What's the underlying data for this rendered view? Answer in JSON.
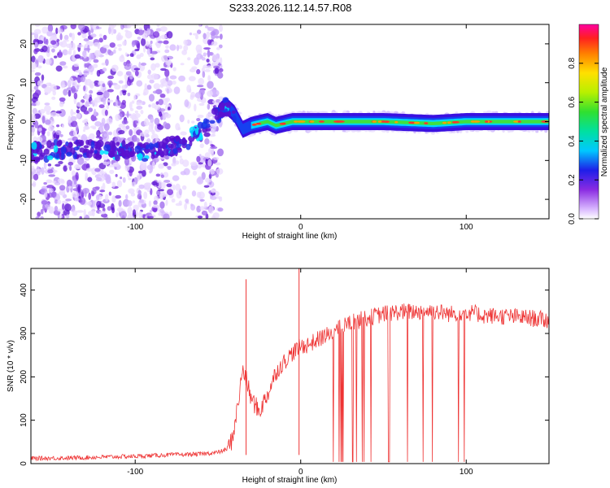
{
  "title": "S233.2026.112.14.57.R08",
  "colors": {
    "snr_line": "#ee3333",
    "axis": "#000000"
  },
  "chart_data": [
    {
      "type": "heatmap",
      "xlabel": "Height of straight line (km)",
      "ylabel": "Frequency (Hz)",
      "xlim": [
        -163,
        150
      ],
      "ylim": [
        -25,
        25
      ],
      "x_ticks": [
        -100,
        0,
        100
      ],
      "y_ticks": [
        -20,
        -10,
        0,
        10,
        20
      ],
      "colorbar": {
        "label": "Normalized spectral amplitude",
        "range": [
          0,
          1
        ],
        "ticks": [
          0.0,
          0.2,
          0.4,
          0.6,
          0.8
        ],
        "colormap": "rainbow"
      },
      "ridge": {
        "x": [
          -163,
          -150,
          -130,
          -110,
          -95,
          -85,
          -75,
          -65,
          -55,
          -48,
          -45,
          -40,
          -35,
          -30,
          -25,
          -20,
          -15,
          -10,
          -5,
          0,
          20,
          50,
          80,
          100,
          120,
          150
        ],
        "y": [
          -8,
          -7.5,
          -7,
          -7.5,
          -8,
          -7,
          -6,
          -4,
          -1,
          3,
          4,
          2,
          -2,
          -1,
          -0.5,
          0,
          -1,
          -0.5,
          0,
          0,
          0,
          0,
          -0.5,
          0,
          0,
          0
        ]
      },
      "noise_region_x": [
        -163,
        -48
      ],
      "hole_region_x": [
        -78,
        -62
      ]
    },
    {
      "type": "line",
      "xlabel": "Height of straight line (km)",
      "ylabel": "SNR (10 * v/v)",
      "xlim": [
        -163,
        150
      ],
      "ylim": [
        0,
        450
      ],
      "x_ticks": [
        -100,
        0,
        100
      ],
      "y_ticks": [
        0,
        100,
        200,
        300,
        400
      ],
      "series": [
        {
          "x": [
            -163,
            -140,
            -120,
            -100,
            -80,
            -60,
            -50,
            -45,
            -42,
            -40,
            -37,
            -35,
            -32,
            -30,
            -25,
            -20,
            -15,
            -10,
            -5,
            0,
            5,
            10,
            15,
            20,
            25,
            30,
            40,
            50,
            60,
            70,
            80,
            90,
            100,
            110,
            120,
            130,
            140,
            150
          ],
          "values": [
            12,
            13,
            15,
            17,
            20,
            22,
            26,
            32,
            50,
            85,
            160,
            220,
            180,
            150,
            120,
            160,
            210,
            235,
            255,
            270,
            275,
            285,
            295,
            305,
            315,
            325,
            335,
            345,
            350,
            350,
            352,
            345,
            350,
            342,
            340,
            338,
            335,
            330
          ]
        }
      ],
      "spikes": [
        {
          "x": -33,
          "y": 425
        },
        {
          "x": -1,
          "y": 450
        }
      ],
      "dropout_range_x": [
        15,
        105
      ]
    }
  ]
}
